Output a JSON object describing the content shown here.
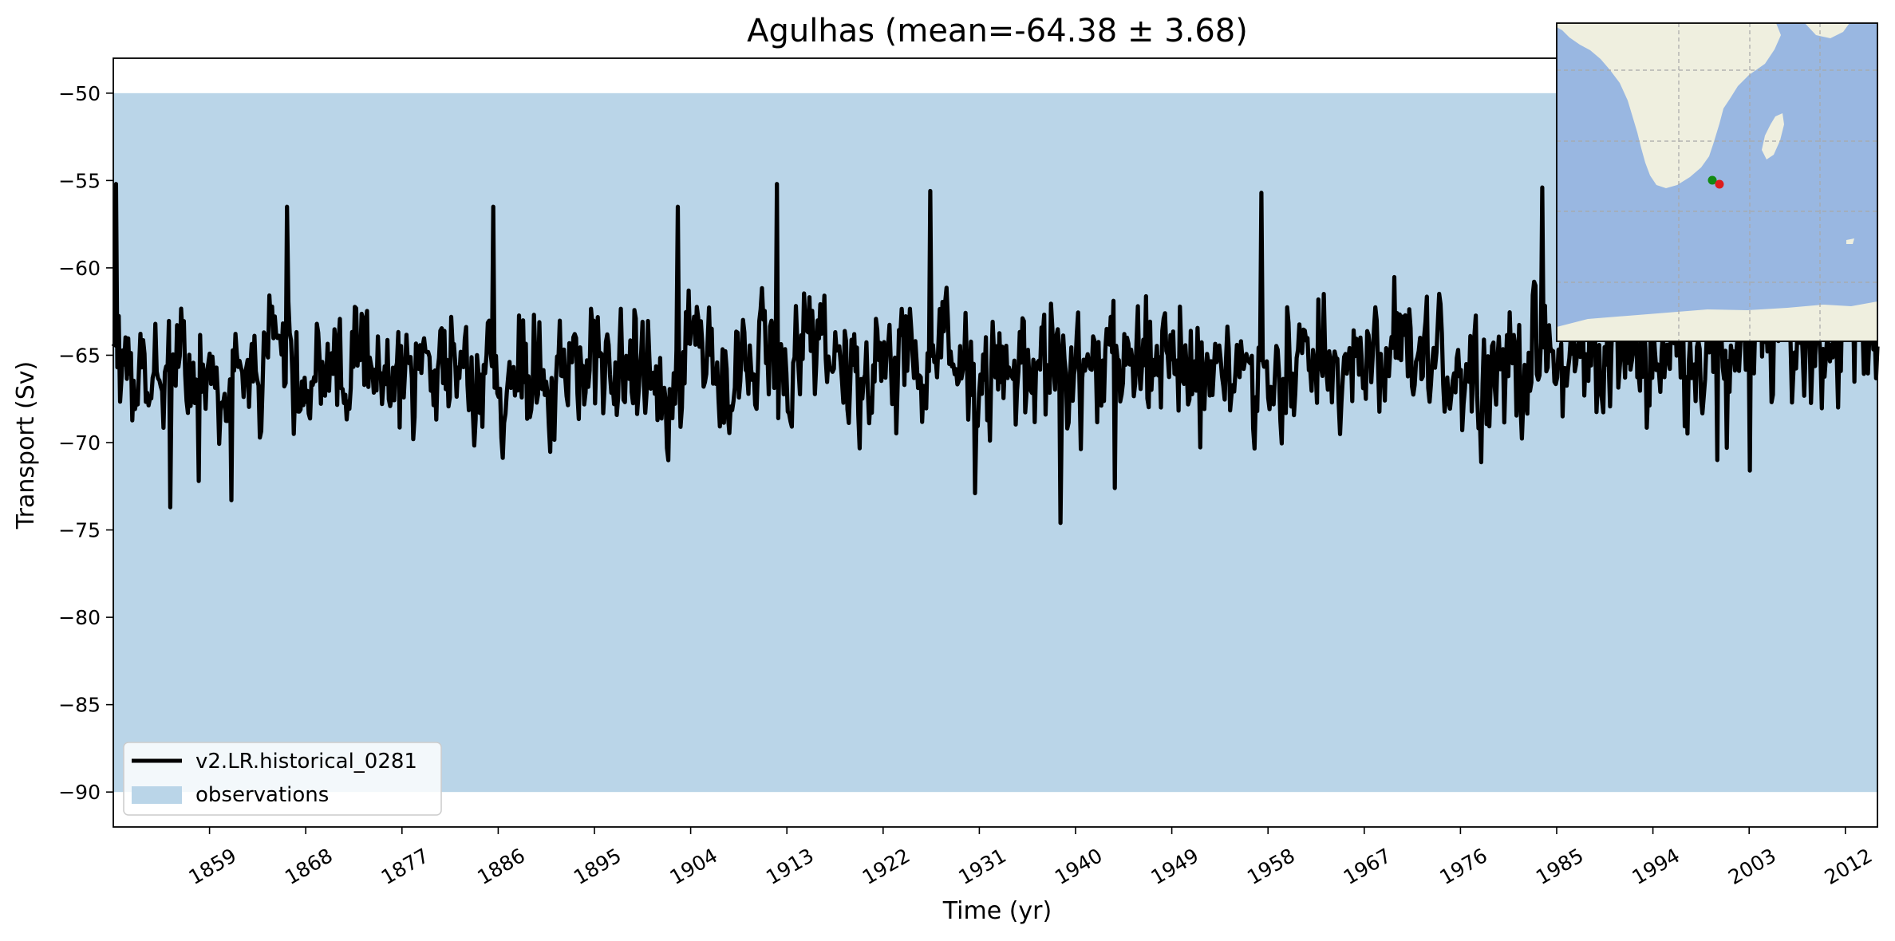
{
  "chart_data": {
    "type": "line",
    "title": "Agulhas (mean=-64.38 ± 3.68)",
    "xlabel": "Time (yr)",
    "ylabel": "Transport (Sv)",
    "xlim": [
      1850,
      2015
    ],
    "ylim": [
      -92,
      -48
    ],
    "x_ticks": [
      1859,
      1868,
      1877,
      1886,
      1895,
      1904,
      1913,
      1922,
      1931,
      1940,
      1949,
      1958,
      1967,
      1976,
      1985,
      1994,
      2003,
      2012
    ],
    "y_ticks": [
      -50,
      -55,
      -60,
      -65,
      -70,
      -75,
      -80,
      -85,
      -90
    ],
    "legend_position": "lower-left",
    "observations": {
      "name": "observations",
      "range": [
        -90,
        -50
      ],
      "color": "#bad5e8"
    },
    "series": [
      {
        "name": "v2.LR.historical_0281",
        "color": "#000000",
        "x_start": 1850,
        "x_end": 2015,
        "mean": -64.38,
        "std": 3.68,
        "notable_points": [
          {
            "x": 1850.0,
            "y": -64.5
          },
          {
            "x": 1850.3,
            "y": -55.2
          },
          {
            "x": 1855.3,
            "y": -73.7
          },
          {
            "x": 1858.0,
            "y": -72.2
          },
          {
            "x": 1861.0,
            "y": -73.3
          },
          {
            "x": 1866.3,
            "y": -56.5
          },
          {
            "x": 1885.6,
            "y": -56.5
          },
          {
            "x": 1902.8,
            "y": -56.5
          },
          {
            "x": 1912.1,
            "y": -55.2
          },
          {
            "x": 1926.4,
            "y": -55.6
          },
          {
            "x": 1930.6,
            "y": -72.9
          },
          {
            "x": 1938.6,
            "y": -74.6
          },
          {
            "x": 1943.7,
            "y": -72.6
          },
          {
            "x": 1957.4,
            "y": -55.7
          },
          {
            "x": 1983.6,
            "y": -55.4
          },
          {
            "x": 1985.6,
            "y": -68.5
          },
          {
            "x": 2000.0,
            "y": -71.0
          },
          {
            "x": 2000.9,
            "y": -70.3
          },
          {
            "x": 2003.1,
            "y": -71.6
          },
          {
            "x": 2015.0,
            "y": -64.5
          }
        ]
      }
    ]
  },
  "inset_map": {
    "land_color": "#efefdf",
    "ocean_color": "#99b7e1",
    "grid_color": "#a8a8a8",
    "markers": [
      {
        "name": "start-point",
        "color": "#138a13"
      },
      {
        "name": "end-point",
        "color": "#dd1d1d"
      }
    ]
  }
}
